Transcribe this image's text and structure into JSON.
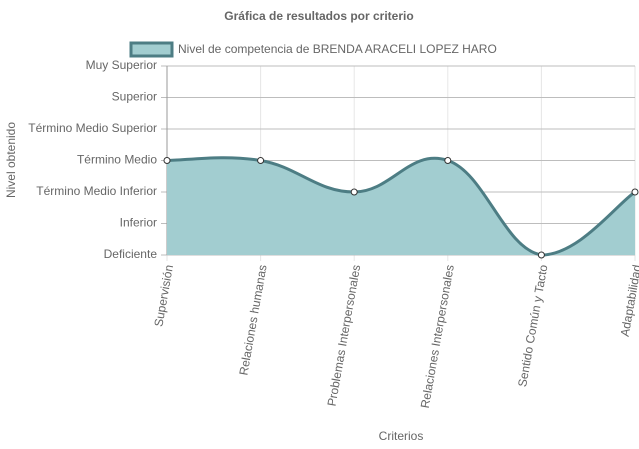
{
  "chart_data": {
    "type": "line",
    "title": "Gráfica de resultados por criterio",
    "x_label": "Criterios",
    "y_label": "Nivel obtenido",
    "categories": [
      "Supervisión",
      "Relaciones humanas",
      "Problemas Interpersonales",
      "Relaciones Interpersonales",
      "Sentido Común y Tacto",
      "Adaptabilidad"
    ],
    "series": [
      {
        "name": "Nivel de competencia de BRENDA ARACELI LOPEZ HARO",
        "color": "#4d7d84",
        "fill": "#a2cdd0",
        "values": [
          3,
          3,
          2,
          3,
          0,
          2
        ]
      }
    ],
    "ylim": [
      0,
      6
    ],
    "yticks": [
      {
        "value": 0,
        "label": "Deficiente"
      },
      {
        "value": 1,
        "label": "Inferior"
      },
      {
        "value": 2,
        "label": "Término Medio Inferior"
      },
      {
        "value": 3,
        "label": "Término Medio"
      },
      {
        "value": 4,
        "label": "Término Medio Superior"
      },
      {
        "value": 5,
        "label": "Superior"
      },
      {
        "value": 6,
        "label": "Muy Superior"
      }
    ],
    "grid": true
  }
}
